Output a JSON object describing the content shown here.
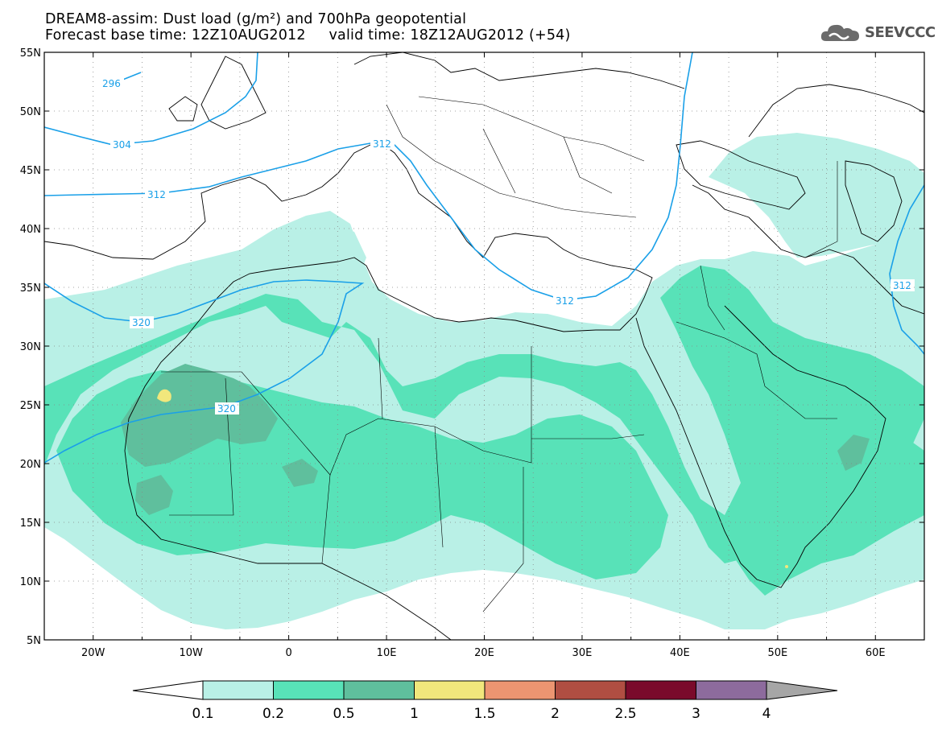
{
  "header": {
    "title_line1": "DREAM8-assim: Dust load (g/m²) and 700hPa geopotential",
    "title_line2": "Forecast base time: 12Z10AUG2012     valid time: 18Z12AUG2012 (+54)"
  },
  "logo": {
    "text": "SEEVCCC",
    "icon": "cloud-icon"
  },
  "map": {
    "lon_range": [
      -25,
      65
    ],
    "lat_range": [
      5,
      55
    ],
    "lat_labels": [
      "55N",
      "50N",
      "45N",
      "40N",
      "35N",
      "30N",
      "25N",
      "20N",
      "15N",
      "10N",
      "5N"
    ],
    "lon_labels": [
      "20W",
      "10W",
      "0",
      "10E",
      "20E",
      "30E",
      "40E",
      "50E",
      "60E"
    ],
    "contour_labels": [
      "296",
      "304",
      "312",
      "312",
      "312",
      "320",
      "320",
      "312"
    ]
  },
  "legend": {
    "colors": [
      "#b9f0e6",
      "#58e2b8",
      "#5fbf9d",
      "#f1e77c",
      "#ec9571",
      "#b04e42",
      "#7a0a2b",
      "#8d6b9d"
    ],
    "end_low_color": "#ffffff",
    "end_high_color": "#a6a6a6",
    "tick_labels": [
      "0.1",
      "0.2",
      "0.5",
      "1",
      "1.5",
      "2",
      "2.5",
      "3",
      "4"
    ]
  }
}
